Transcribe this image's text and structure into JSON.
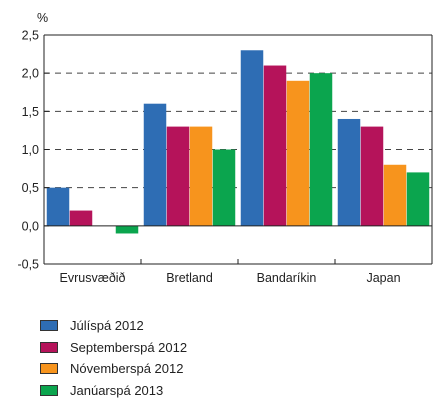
{
  "chart_data": {
    "type": "bar",
    "unit": "%",
    "categories": [
      "Evrusvæðið",
      "Bretland",
      "Bandaríkin",
      "Japan"
    ],
    "series": [
      {
        "name": "Júlíspá 2012",
        "color": "#2E6DB4",
        "values": [
          0.5,
          1.6,
          2.3,
          1.4
        ]
      },
      {
        "name": "Septemberspá 2012",
        "color": "#B5135A",
        "values": [
          0.2,
          1.3,
          2.1,
          1.3
        ]
      },
      {
        "name": "Nóvemberspá 2012",
        "color": "#F7941D",
        "values": [
          0.0,
          1.3,
          1.9,
          0.8
        ]
      },
      {
        "name": "Janúarspá 2013",
        "color": "#0BA54E",
        "values": [
          -0.1,
          1.0,
          2.0,
          0.7
        ]
      }
    ],
    "ylim": [
      -0.5,
      2.5
    ],
    "yticks": [
      "-0,5",
      "0,0",
      "0,5",
      "1,0",
      "1,5",
      "2,0",
      "2,5"
    ],
    "grid": "dashed horizontal",
    "legend_position": "bottom-left"
  }
}
